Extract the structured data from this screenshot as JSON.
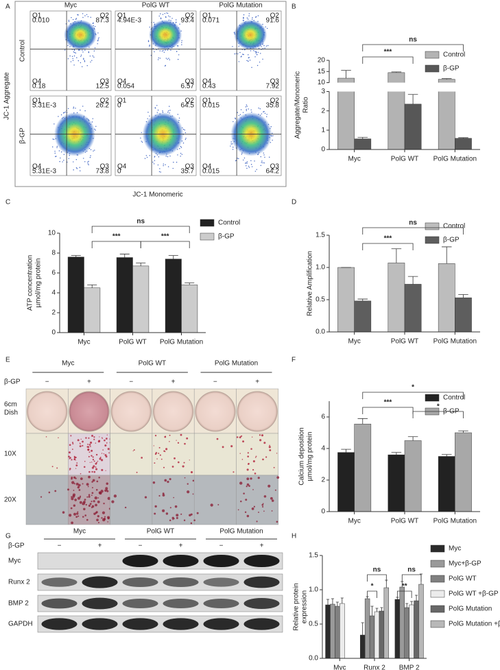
{
  "panel_labels": [
    "A",
    "B",
    "C",
    "D",
    "E",
    "F",
    "G",
    "H"
  ],
  "flow": {
    "columns": [
      "Myc",
      "PolG WT",
      "PolG Mutation"
    ],
    "rows": [
      "Control",
      "β-GP"
    ],
    "ylabel": "JC-1 Aggregate",
    "xlabel": "JC-1 Monomeric",
    "quadrant_names": [
      "Q1",
      "Q2",
      "Q3",
      "Q4"
    ],
    "plots": [
      [
        [
          "0.010",
          "87.3",
          "12.5",
          "0.18"
        ],
        [
          "4.94E-3",
          "93.4",
          "6.57",
          "0.054"
        ],
        [
          "0.071",
          "91.6",
          "7.92",
          "0.43"
        ]
      ],
      [
        [
          "5.31E-3",
          "26.2",
          "73.8",
          "5.31E-3"
        ],
        [
          "0",
          "64.5",
          "35.7",
          "0"
        ],
        [
          "0.015",
          "35.8",
          "64.2",
          "0.015"
        ]
      ]
    ]
  },
  "chart_data": [
    {
      "type": "bar",
      "ylabel": [
        "Aggregate/Monomeric",
        "Ratio"
      ],
      "categories": [
        "Myc",
        "PolG WT",
        "PolG Mutation"
      ],
      "ylim": [
        0,
        20
      ],
      "ybreak": [
        3,
        10
      ],
      "yticks": [
        0,
        1,
        2,
        3,
        10,
        15,
        20
      ],
      "series": [
        {
          "name": "Control",
          "color": "#b3b3b3",
          "values": [
            12,
            14.5,
            11.5
          ],
          "errors": [
            3.5,
            0.3,
            0.3
          ]
        },
        {
          "name": "β-GP",
          "color": "#575757",
          "values": [
            0.55,
            2.35,
            0.58
          ],
          "errors": [
            0.08,
            0.5,
            0.03
          ]
        }
      ],
      "annotations": [
        "ns",
        "***"
      ]
    },
    {
      "type": "bar",
      "ylabel": [
        "ATP concentration",
        "µmol/mg protein"
      ],
      "categories": [
        "Myc",
        "PolG WT",
        "PolG Mutation"
      ],
      "ylim": [
        0,
        10
      ],
      "yticks": [
        0,
        2,
        4,
        6,
        8,
        10
      ],
      "series": [
        {
          "name": "Control",
          "color": "#222222",
          "values": [
            7.6,
            7.55,
            7.4
          ],
          "errors": [
            0.15,
            0.35,
            0.35
          ]
        },
        {
          "name": "β-GP",
          "color": "#cccccc",
          "values": [
            4.5,
            6.7,
            4.8
          ],
          "errors": [
            0.3,
            0.3,
            0.2
          ]
        }
      ],
      "annotations": [
        "ns",
        "***",
        "***"
      ]
    },
    {
      "type": "bar",
      "ylabel": [
        "Relative Amplification"
      ],
      "categories": [
        "Myc",
        "PolG WT",
        "PolG Mutation"
      ],
      "ylim": [
        0,
        1.5
      ],
      "yticks": [
        {
          "value": 0,
          "label": "0.0"
        },
        0.5,
        {
          "value": 1,
          "label": "1.0"
        },
        1.5
      ],
      "series": [
        {
          "name": "Control",
          "color": "#bdbdbd",
          "values": [
            1,
            1.07,
            1.06
          ],
          "errors": [
            0,
            0.22,
            0.26
          ]
        },
        {
          "name": "β-GP",
          "color": "#5e5e5e",
          "values": [
            0.48,
            0.74,
            0.53
          ],
          "errors": [
            0.03,
            0.12,
            0.05
          ]
        }
      ],
      "annotations": [
        "ns",
        "***"
      ]
    },
    {
      "type": "bar",
      "ylabel": [
        "Calcium deposition",
        "µmol/mg protein"
      ],
      "categories": [
        "Myc",
        "PolG WT",
        "PolG Mutation"
      ],
      "ylim": [
        0,
        7
      ],
      "yticks": [
        0,
        2,
        4,
        6
      ],
      "series": [
        {
          "name": "Control",
          "color": "#222222",
          "values": [
            3.75,
            3.6,
            3.5
          ],
          "errors": [
            0.2,
            0.15,
            0.12
          ]
        },
        {
          "name": "β-GP",
          "color": "#a8a8a8",
          "values": [
            5.55,
            4.5,
            5
          ],
          "errors": [
            0.35,
            0.25,
            0.12
          ]
        }
      ],
      "annotations": [
        "*",
        "***",
        "*"
      ]
    },
    {
      "type": "bar",
      "ylabel": [
        "Relative protein",
        "expression"
      ],
      "categories": [
        "Myc",
        "Runx 2",
        "BMP 2"
      ],
      "ylim": [
        0,
        1.5
      ],
      "yticks": [
        {
          "value": 0,
          "label": "0.0"
        },
        0.5,
        {
          "value": 1,
          "label": "1.0"
        },
        1.5
      ],
      "series": [
        {
          "name": "Myc",
          "color": "#2b2b2b",
          "values": [
            0.78,
            0.34,
            0.86
          ],
          "errors": [
            0.08,
            0.18,
            0.03
          ]
        },
        {
          "name": "Myc+β-GP",
          "color": "#9a9a9a",
          "values": [
            0.79,
            0.87,
            1.04
          ],
          "errors": [
            0.08,
            0.03,
            0.08
          ]
        },
        {
          "name": "PolG WT",
          "color": "#808080",
          "values": [
            0.76,
            0.62,
            0.74
          ],
          "errors": [
            0.06,
            0.14,
            0.06
          ]
        },
        {
          "name": "PolG WT +β-GP",
          "color": "#ececec",
          "values": [
            0.8,
            0.68,
            0.78
          ],
          "errors": [
            0.08,
            0.05,
            0.05
          ]
        },
        {
          "name": "PolG Mutation",
          "color": "#686868",
          "values": [
            null,
            0.69,
            0.84
          ],
          "errors": [
            null,
            0.05,
            0.08
          ]
        },
        {
          "name": "PolG Mutation +β-GP",
          "color": "#b8b8b8",
          "values": [
            null,
            1.03,
            1.08
          ],
          "errors": [
            null,
            0.11,
            0.15
          ]
        }
      ],
      "annotations": [
        "ns",
        "*",
        "ns",
        "**"
      ]
    }
  ],
  "staining": {
    "columns": [
      "Myc",
      "PolG WT",
      "PolG Mutation"
    ],
    "treatment_label": "β-GP",
    "treatment_marks": [
      "−",
      "+"
    ],
    "rows": [
      {
        "label": [
          "6cm",
          "Dish"
        ]
      },
      {
        "label": [
          "10X"
        ]
      },
      {
        "label": [
          "20X"
        ]
      }
    ]
  },
  "blot": {
    "columns": [
      "Myc",
      "PolG WT",
      "PolG Mutation"
    ],
    "treatment_label": "β-GP",
    "treatment_marks": [
      "−",
      "+"
    ],
    "rows": [
      "Myc",
      "Runx 2",
      "BMP 2",
      "GAPDH"
    ]
  }
}
